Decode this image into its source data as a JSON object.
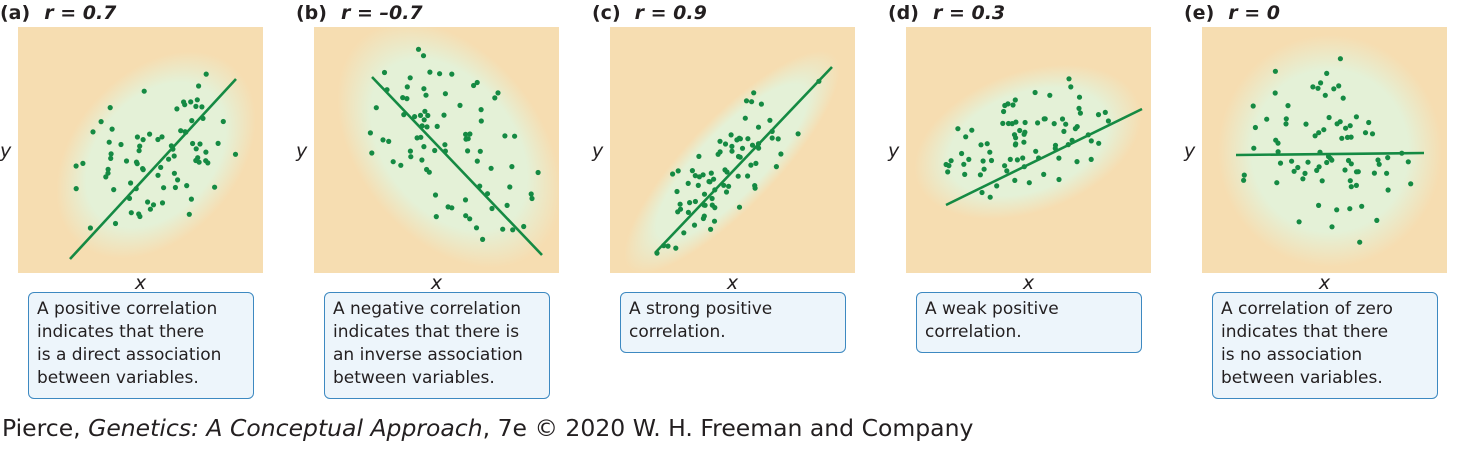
{
  "chart_data": [
    {
      "type": "scatter",
      "panel_label": "(a)",
      "title": "r = 0.7",
      "xlabel": "x",
      "ylabel": "y",
      "r": 0.7,
      "caption_lines": [
        "A positive correlation",
        "indicates that there",
        "is a direct association",
        "between variables."
      ],
      "colors": {
        "background": "#f6ddb1",
        "ellipse": "#e4f1d7",
        "points": "#158a43",
        "line": "#158a43",
        "caption_border": "#3d89c1",
        "caption_bg": "#edf5fb"
      }
    },
    {
      "type": "scatter",
      "panel_label": "(b)",
      "title": "r = –0.7",
      "xlabel": "x",
      "ylabel": "y",
      "r": -0.7,
      "caption_lines": [
        "A negative correlation",
        "indicates that there is",
        "an inverse association",
        "between variables."
      ],
      "colors": {
        "background": "#f6ddb1",
        "ellipse": "#e4f1d7",
        "points": "#158a43",
        "line": "#158a43",
        "caption_border": "#3d89c1",
        "caption_bg": "#edf5fb"
      }
    },
    {
      "type": "scatter",
      "panel_label": "(c)",
      "title": "r = 0.9",
      "xlabel": "x",
      "ylabel": "y",
      "r": 0.9,
      "caption_lines": [
        "A strong positive",
        "correlation."
      ],
      "colors": {
        "background": "#f6ddb1",
        "ellipse": "#e4f1d7",
        "points": "#158a43",
        "line": "#158a43",
        "caption_border": "#3d89c1",
        "caption_bg": "#edf5fb"
      }
    },
    {
      "type": "scatter",
      "panel_label": "(d)",
      "title": "r = 0.3",
      "xlabel": "x",
      "ylabel": "y",
      "r": 0.3,
      "caption_lines": [
        "A weak positive",
        "correlation."
      ],
      "colors": {
        "background": "#f6ddb1",
        "ellipse": "#e4f1d7",
        "points": "#158a43",
        "line": "#158a43",
        "caption_border": "#3d89c1",
        "caption_bg": "#edf5fb"
      }
    },
    {
      "type": "scatter",
      "panel_label": "(e)",
      "title": "r = 0",
      "xlabel": "x",
      "ylabel": "y",
      "r": 0,
      "caption_lines": [
        "A correlation of zero",
        "indicates that there",
        "is no association",
        "between variables."
      ],
      "colors": {
        "background": "#f6ddb1",
        "ellipse": "#e4f1d7",
        "points": "#158a43",
        "line": "#158a43",
        "caption_border": "#3d89c1",
        "caption_bg": "#edf5fb"
      }
    }
  ],
  "credit": {
    "author": "Pierce, ",
    "book": "Genetics: A Conceptual Approach",
    "rest": ", 7e © 2020 W. H. Freeman and Company"
  }
}
